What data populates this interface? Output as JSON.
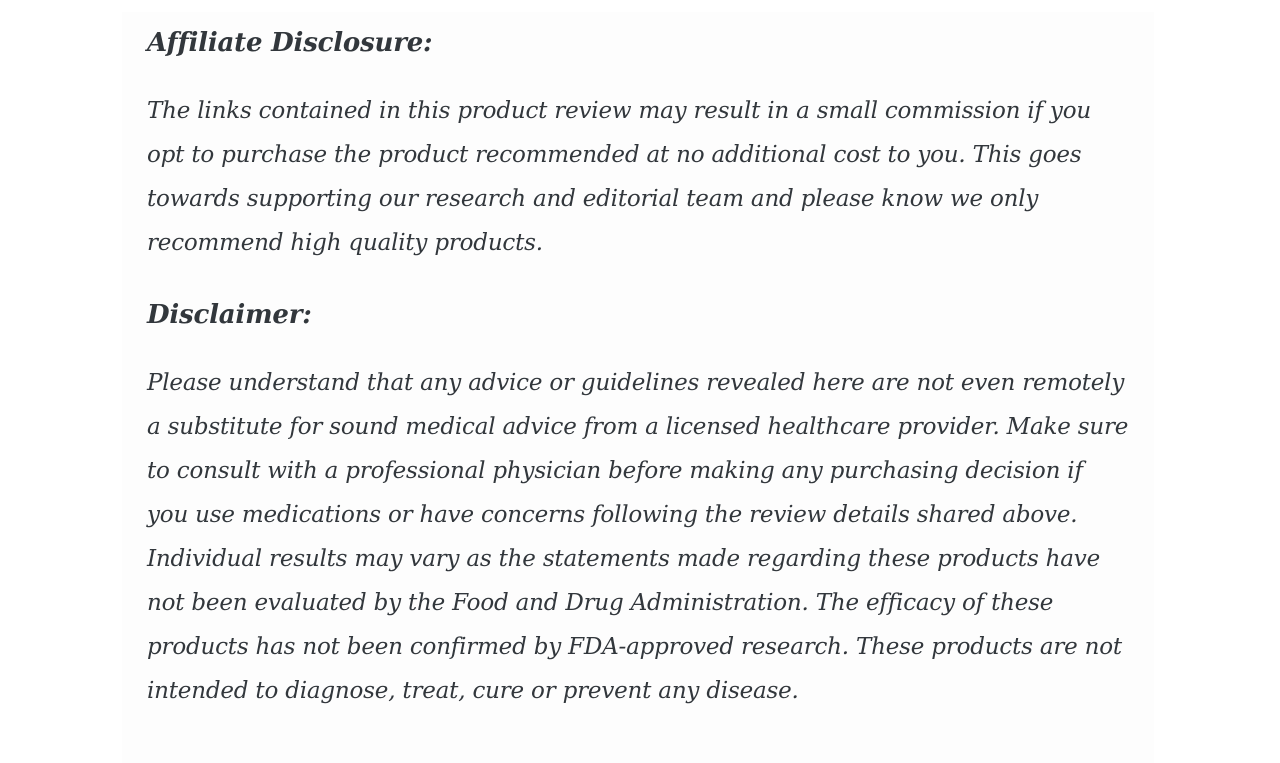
{
  "page": {
    "background_color": "#ffffff",
    "card_background_color": "#fdfdfd",
    "text_color": "#32373c"
  },
  "article": {
    "sections": [
      {
        "heading": "Affiliate Disclosure:",
        "paragraphs": [
          "The links contained in this product review may result in a small commission if you opt to purchase the product recommended at no additional cost to you. This goes towards supporting our research and editorial team and please know we only recommend high quality products."
        ]
      },
      {
        "heading": "Disclaimer:",
        "paragraphs": [
          "Please understand that any advice or guidelines revealed here are not even remotely a substitute for sound medical advice from a licensed healthcare provider. Make sure to consult with a professional physician before making any purchasing decision if you use medications or have concerns following the review details shared above. Individual results may vary as the statements made regarding these products have not been evaluated by the Food and Drug Administration. The efficacy of these products has not been confirmed by FDA-approved research. These products are not intended to diagnose, treat, cure or prevent any disease."
        ]
      }
    ]
  }
}
